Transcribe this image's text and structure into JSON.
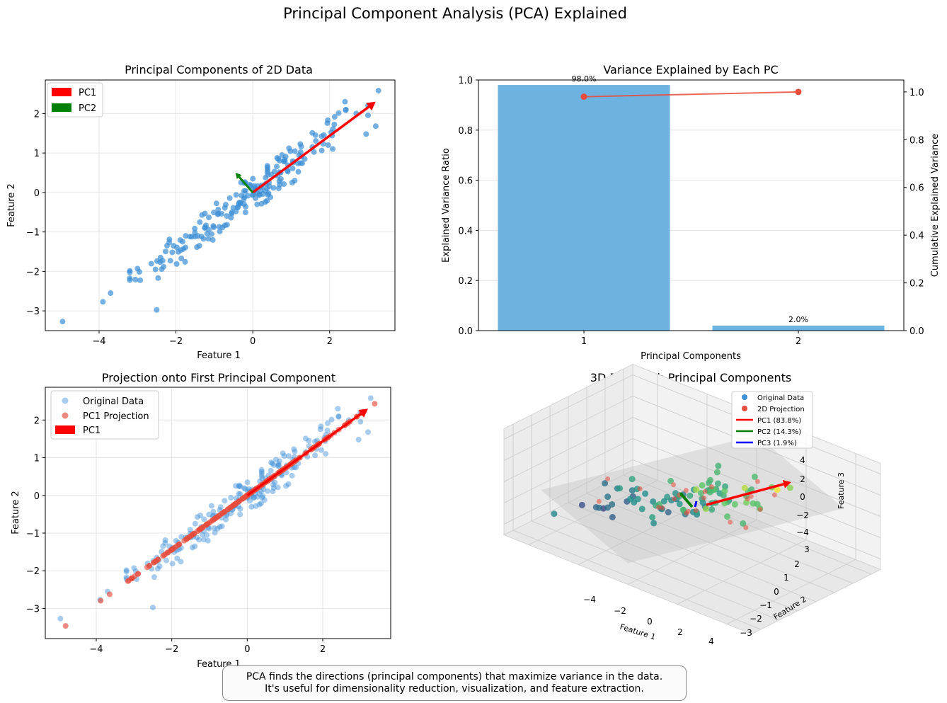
{
  "figure": {
    "suptitle": "Principal Component Analysis (PCA) Explained",
    "caption_line1": "PCA finds the directions (principal components) that maximize variance in the data.",
    "caption_line2": "It's useful for dimensionality reduction, visualization, and feature extraction."
  },
  "colors": {
    "data": "#3b8fd6",
    "projection": "#e74c3c",
    "pc1": "#ff0000",
    "pc2": "#008000",
    "pc3": "#0000ff",
    "bar": "#6db3e2",
    "cum_line": "#e74c3c",
    "grid": "#e6e6e6"
  },
  "chart_data": [
    {
      "id": "scatter2d",
      "type": "scatter",
      "title": "Principal Components of 2D Data",
      "xlabel": "Feature 1",
      "ylabel": "Feature 2",
      "xlim": [
        -5.4,
        3.7
      ],
      "ylim": [
        -3.5,
        2.85
      ],
      "xticks": [
        -4,
        -2,
        0,
        2
      ],
      "yticks": [
        -3,
        -2,
        -1,
        0,
        1,
        2
      ],
      "legend": [
        {
          "label": "PC1",
          "color": "#ff0000"
        },
        {
          "label": "PC2",
          "color": "#008000"
        }
      ],
      "vectors": [
        {
          "name": "PC1",
          "from": [
            0,
            0
          ],
          "to": [
            3.2,
            2.3
          ],
          "color": "#ff0000"
        },
        {
          "name": "PC2",
          "from": [
            0,
            0
          ],
          "to": [
            -0.45,
            0.5
          ],
          "color": "#008000"
        }
      ],
      "n_points": 200,
      "highlight_points": [
        [
          -4.95,
          -3.27
        ],
        [
          -3.9,
          -2.77
        ],
        [
          -3.7,
          -2.55
        ],
        [
          3.27,
          2.58
        ],
        [
          2.4,
          2.3
        ],
        [
          3.2,
          1.68
        ],
        [
          2.95,
          1.48
        ],
        [
          -3.0,
          -1.93
        ]
      ]
    },
    {
      "id": "variance",
      "type": "bar",
      "title": "Variance Explained by Each PC",
      "xlabel": "Principal Components",
      "ylabel": "Explained Variance Ratio",
      "ylabel_right": "Cumulative Explained Variance",
      "categories": [
        "1",
        "2"
      ],
      "values": [
        0.98,
        0.02
      ],
      "bar_labels": [
        "98.0%",
        "2.0%"
      ],
      "cumulative": [
        0.98,
        1.0
      ],
      "ylim": [
        0,
        1.0
      ],
      "ylim_right": [
        0,
        1.05
      ],
      "yticks": [
        0.0,
        0.2,
        0.4,
        0.6,
        0.8,
        1.0
      ],
      "yticks_right": [
        0.0,
        0.2,
        0.4,
        0.6,
        0.8,
        1.0
      ]
    },
    {
      "id": "projection",
      "type": "scatter",
      "title": "Projection onto First Principal Component",
      "xlabel": "Feature 1",
      "ylabel": "Feature 2",
      "xlim": [
        -5.35,
        3.8
      ],
      "ylim": [
        -3.8,
        2.87
      ],
      "xticks": [
        -4,
        -2,
        0,
        2
      ],
      "yticks": [
        -3,
        -2,
        -1,
        0,
        1,
        2
      ],
      "legend": [
        {
          "label": "Original Data",
          "kind": "dot",
          "color": "#3b8fd6"
        },
        {
          "label": "PC1 Projection",
          "kind": "dot",
          "color": "#e74c3c"
        },
        {
          "label": "PC1",
          "kind": "patch",
          "color": "#ff0000"
        }
      ],
      "vectors": [
        {
          "name": "PC1",
          "from": [
            0,
            0
          ],
          "to": [
            3.2,
            2.3
          ],
          "color": "#ff0000"
        }
      ],
      "projection_slope": 0.72,
      "n_points": 200
    },
    {
      "id": "pca3d",
      "type": "scatter",
      "title": "3D Data with Principal Components",
      "xlabel": "Feature 1",
      "ylabel": "Feature 2",
      "zlabel": "Feature 3",
      "xticks": [
        -4,
        -2,
        0,
        2,
        4
      ],
      "yticks": [
        -3,
        -2,
        -1,
        0,
        1,
        2,
        3
      ],
      "zticks": [
        -4,
        -2,
        0,
        2,
        4
      ],
      "legend": [
        {
          "label": "Original Data",
          "kind": "dot",
          "color": "#3b8fd6"
        },
        {
          "label": "2D Projection",
          "kind": "dot",
          "color": "#e74c3c"
        },
        {
          "label": "PC1 (83.8%)",
          "kind": "line",
          "color": "#ff0000"
        },
        {
          "label": "PC2 (14.3%)",
          "kind": "line",
          "color": "#008000"
        },
        {
          "label": "PC3 (1.9%)",
          "kind": "line",
          "color": "#0000ff"
        }
      ]
    }
  ]
}
